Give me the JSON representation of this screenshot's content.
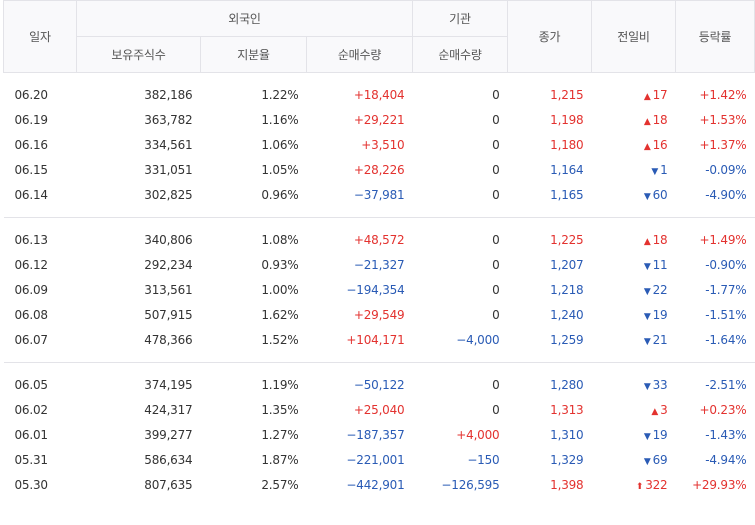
{
  "headers": {
    "date": "일자",
    "foreign": "외국인",
    "foreign_holding": "보유주식수",
    "foreign_ratio": "지분율",
    "foreign_net": "순매수량",
    "inst": "기관",
    "inst_net": "순매수량",
    "close": "종가",
    "change": "전일비",
    "rate": "등락률"
  },
  "groups": [
    {
      "rows": [
        {
          "date": "06.20",
          "holding": "382,186",
          "ratio": "1.22%",
          "fnet": "+18,404",
          "inet": "0",
          "close": "1,215",
          "dir": "up",
          "change": "17",
          "rate": "+1.42%"
        },
        {
          "date": "06.19",
          "holding": "363,782",
          "ratio": "1.16%",
          "fnet": "+29,221",
          "inet": "0",
          "close": "1,198",
          "dir": "up",
          "change": "18",
          "rate": "+1.53%"
        },
        {
          "date": "06.16",
          "holding": "334,561",
          "ratio": "1.06%",
          "fnet": "+3,510",
          "inet": "0",
          "close": "1,180",
          "dir": "up",
          "change": "16",
          "rate": "+1.37%"
        },
        {
          "date": "06.15",
          "holding": "331,051",
          "ratio": "1.05%",
          "fnet": "+28,226",
          "inet": "0",
          "close": "1,164",
          "dir": "down",
          "change": "1",
          "rate": "-0.09%"
        },
        {
          "date": "06.14",
          "holding": "302,825",
          "ratio": "0.96%",
          "fnet": "−37,981",
          "inet": "0",
          "close": "1,165",
          "dir": "down",
          "change": "60",
          "rate": "-4.90%"
        }
      ]
    },
    {
      "rows": [
        {
          "date": "06.13",
          "holding": "340,806",
          "ratio": "1.08%",
          "fnet": "+48,572",
          "inet": "0",
          "close": "1,225",
          "dir": "up",
          "change": "18",
          "rate": "+1.49%"
        },
        {
          "date": "06.12",
          "holding": "292,234",
          "ratio": "0.93%",
          "fnet": "−21,327",
          "inet": "0",
          "close": "1,207",
          "dir": "down",
          "change": "11",
          "rate": "-0.90%"
        },
        {
          "date": "06.09",
          "holding": "313,561",
          "ratio": "1.00%",
          "fnet": "−194,354",
          "inet": "0",
          "close": "1,218",
          "dir": "down",
          "change": "22",
          "rate": "-1.77%"
        },
        {
          "date": "06.08",
          "holding": "507,915",
          "ratio": "1.62%",
          "fnet": "+29,549",
          "inet": "0",
          "close": "1,240",
          "dir": "down",
          "change": "19",
          "rate": "-1.51%"
        },
        {
          "date": "06.07",
          "holding": "478,366",
          "ratio": "1.52%",
          "fnet": "+104,171",
          "inet": "−4,000",
          "close": "1,259",
          "dir": "down",
          "change": "21",
          "rate": "-1.64%"
        }
      ]
    },
    {
      "rows": [
        {
          "date": "06.05",
          "holding": "374,195",
          "ratio": "1.19%",
          "fnet": "−50,122",
          "inet": "0",
          "close": "1,280",
          "dir": "down",
          "change": "33",
          "rate": "-2.51%"
        },
        {
          "date": "06.02",
          "holding": "424,317",
          "ratio": "1.35%",
          "fnet": "+25,040",
          "inet": "0",
          "close": "1,313",
          "dir": "up",
          "change": "3",
          "rate": "+0.23%"
        },
        {
          "date": "06.01",
          "holding": "399,277",
          "ratio": "1.27%",
          "fnet": "−187,357",
          "inet": "+4,000",
          "close": "1,310",
          "dir": "down",
          "change": "19",
          "rate": "-1.43%"
        },
        {
          "date": "05.31",
          "holding": "586,634",
          "ratio": "1.87%",
          "fnet": "−221,001",
          "inet": "−150",
          "close": "1,329",
          "dir": "down",
          "change": "69",
          "rate": "-4.94%"
        },
        {
          "date": "05.30",
          "holding": "807,635",
          "ratio": "2.57%",
          "fnet": "−442,901",
          "inet": "−126,595",
          "close": "1,398",
          "dir": "limit-up",
          "change": "322",
          "rate": "+29.93%"
        }
      ]
    }
  ],
  "colors": {
    "up": "#e3322f",
    "down": "#2a5bb5",
    "neutral": "#333333"
  },
  "icons": {
    "up": "▲",
    "down": "▼",
    "limit-up": "⬆"
  }
}
